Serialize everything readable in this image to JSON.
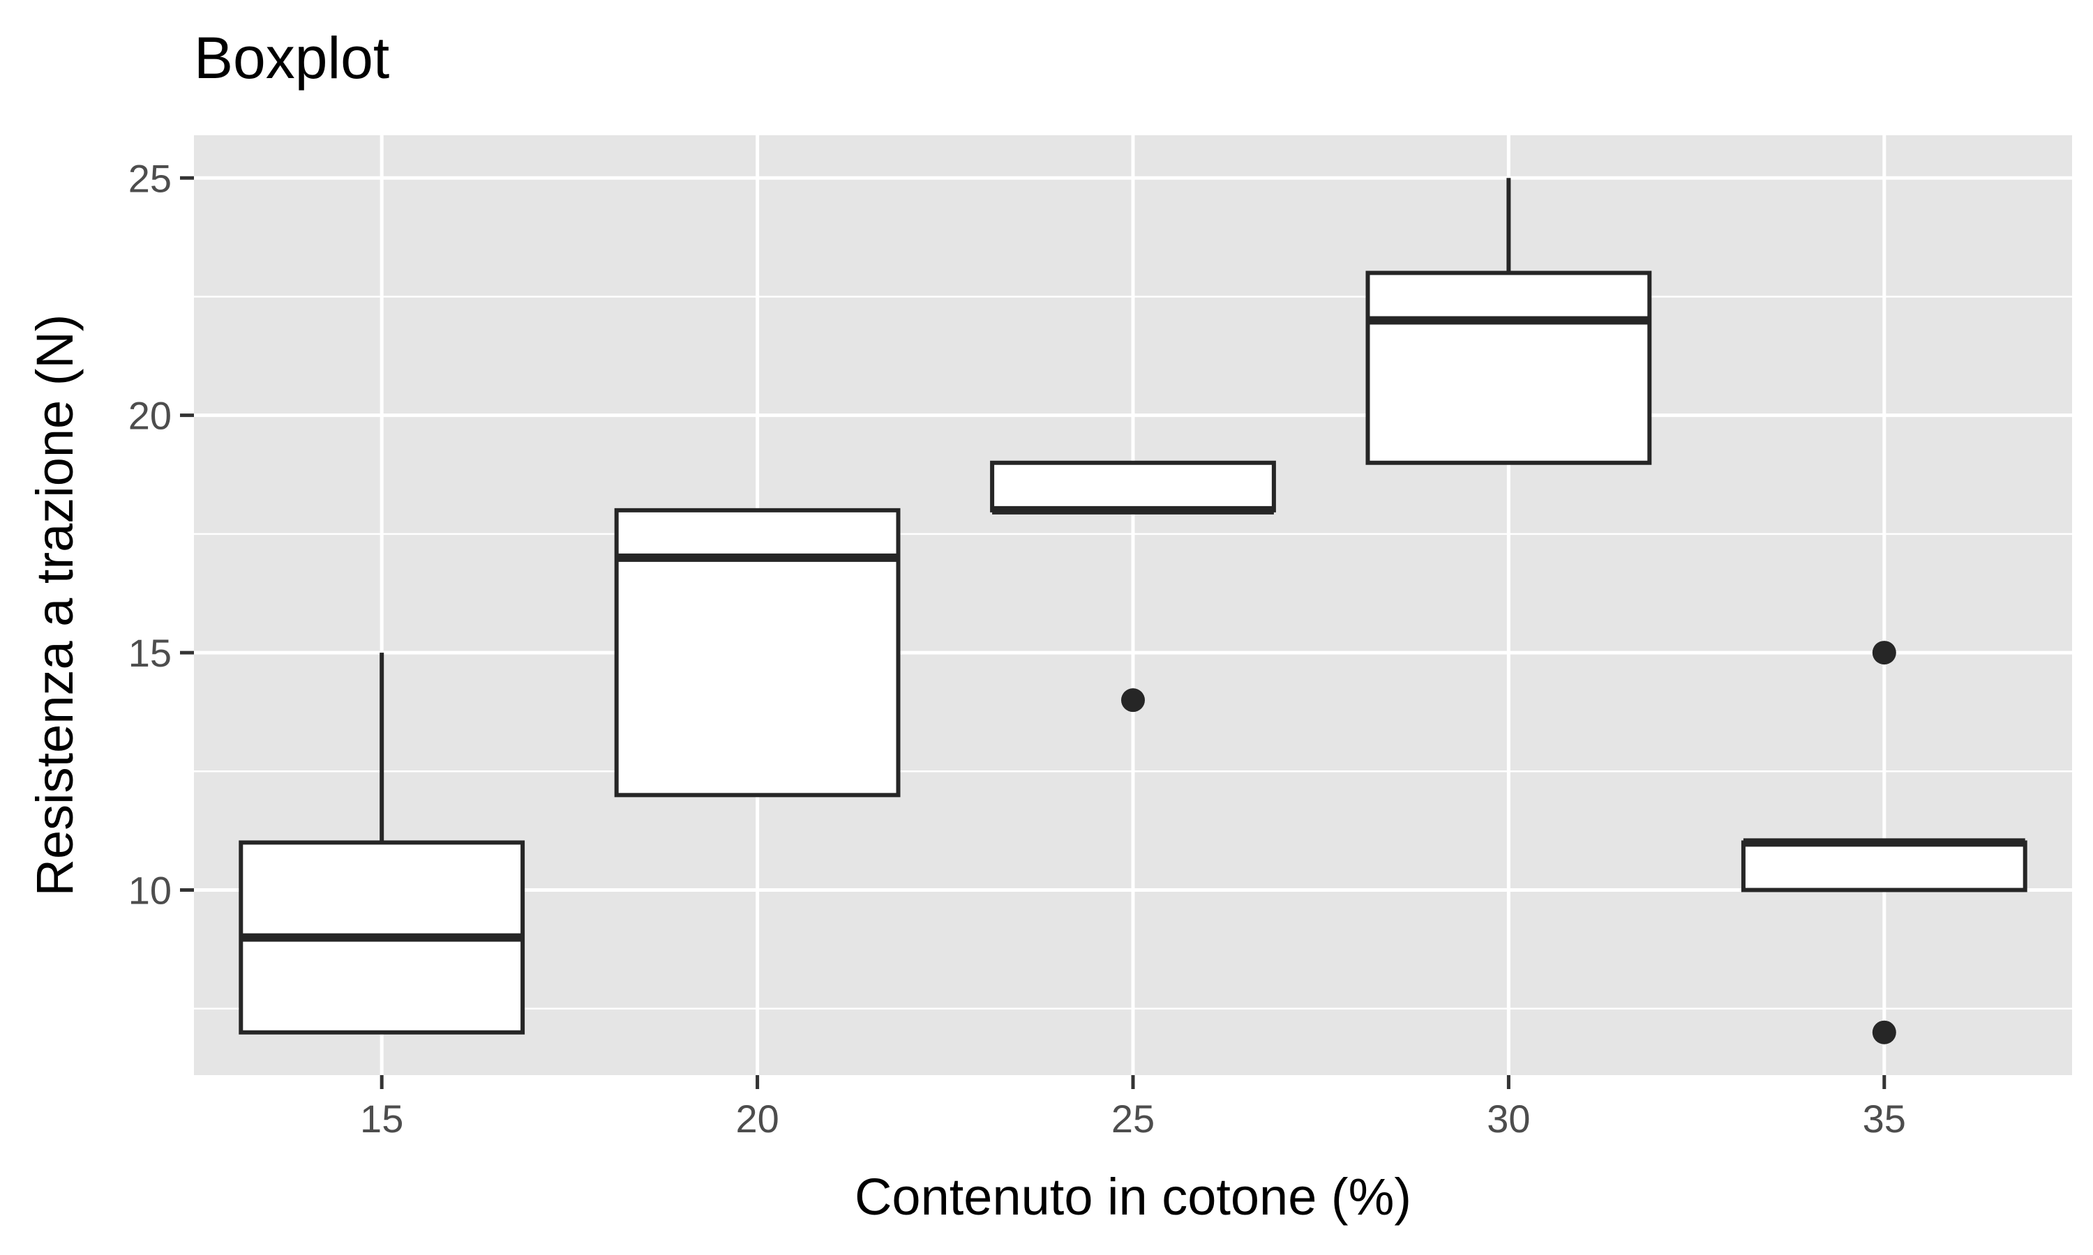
{
  "chart_data": {
    "type": "box",
    "title": "Boxplot",
    "xlabel": "Contenuto in cotone (%)",
    "ylabel": "Resistenza a trazione (N)",
    "categories": [
      "15",
      "20",
      "25",
      "30",
      "35"
    ],
    "ylim": [
      6.1,
      25.9
    ],
    "yticks": [
      10,
      15,
      20,
      25
    ],
    "ytick_labels": [
      "10",
      "15",
      "20",
      "25"
    ],
    "grid": true,
    "legend": "none",
    "boxes": [
      {
        "category": "15",
        "whisker_low": 7,
        "q1": 7,
        "median": 9,
        "q3": 11,
        "whisker_high": 15,
        "outliers": []
      },
      {
        "category": "20",
        "whisker_low": 12,
        "q1": 12,
        "median": 17,
        "q3": 18,
        "whisker_high": 18,
        "outliers": []
      },
      {
        "category": "25",
        "whisker_low": 18,
        "q1": 18,
        "median": 18,
        "q3": 19,
        "whisker_high": 19,
        "outliers": [
          14
        ]
      },
      {
        "category": "30",
        "whisker_low": 19,
        "q1": 19,
        "median": 22,
        "q3": 23,
        "whisker_high": 25,
        "outliers": []
      },
      {
        "category": "35",
        "whisker_low": 10,
        "q1": 10,
        "median": 11,
        "q3": 11,
        "whisker_high": 11,
        "outliers": [
          15,
          7
        ]
      }
    ],
    "colors": {
      "panel": "#e5e5e5",
      "grid": "#ffffff",
      "box_fill": "#ffffff",
      "box_stroke": "#262626",
      "tick_text": "#4d4d4d",
      "axis_text": "#000000"
    }
  }
}
